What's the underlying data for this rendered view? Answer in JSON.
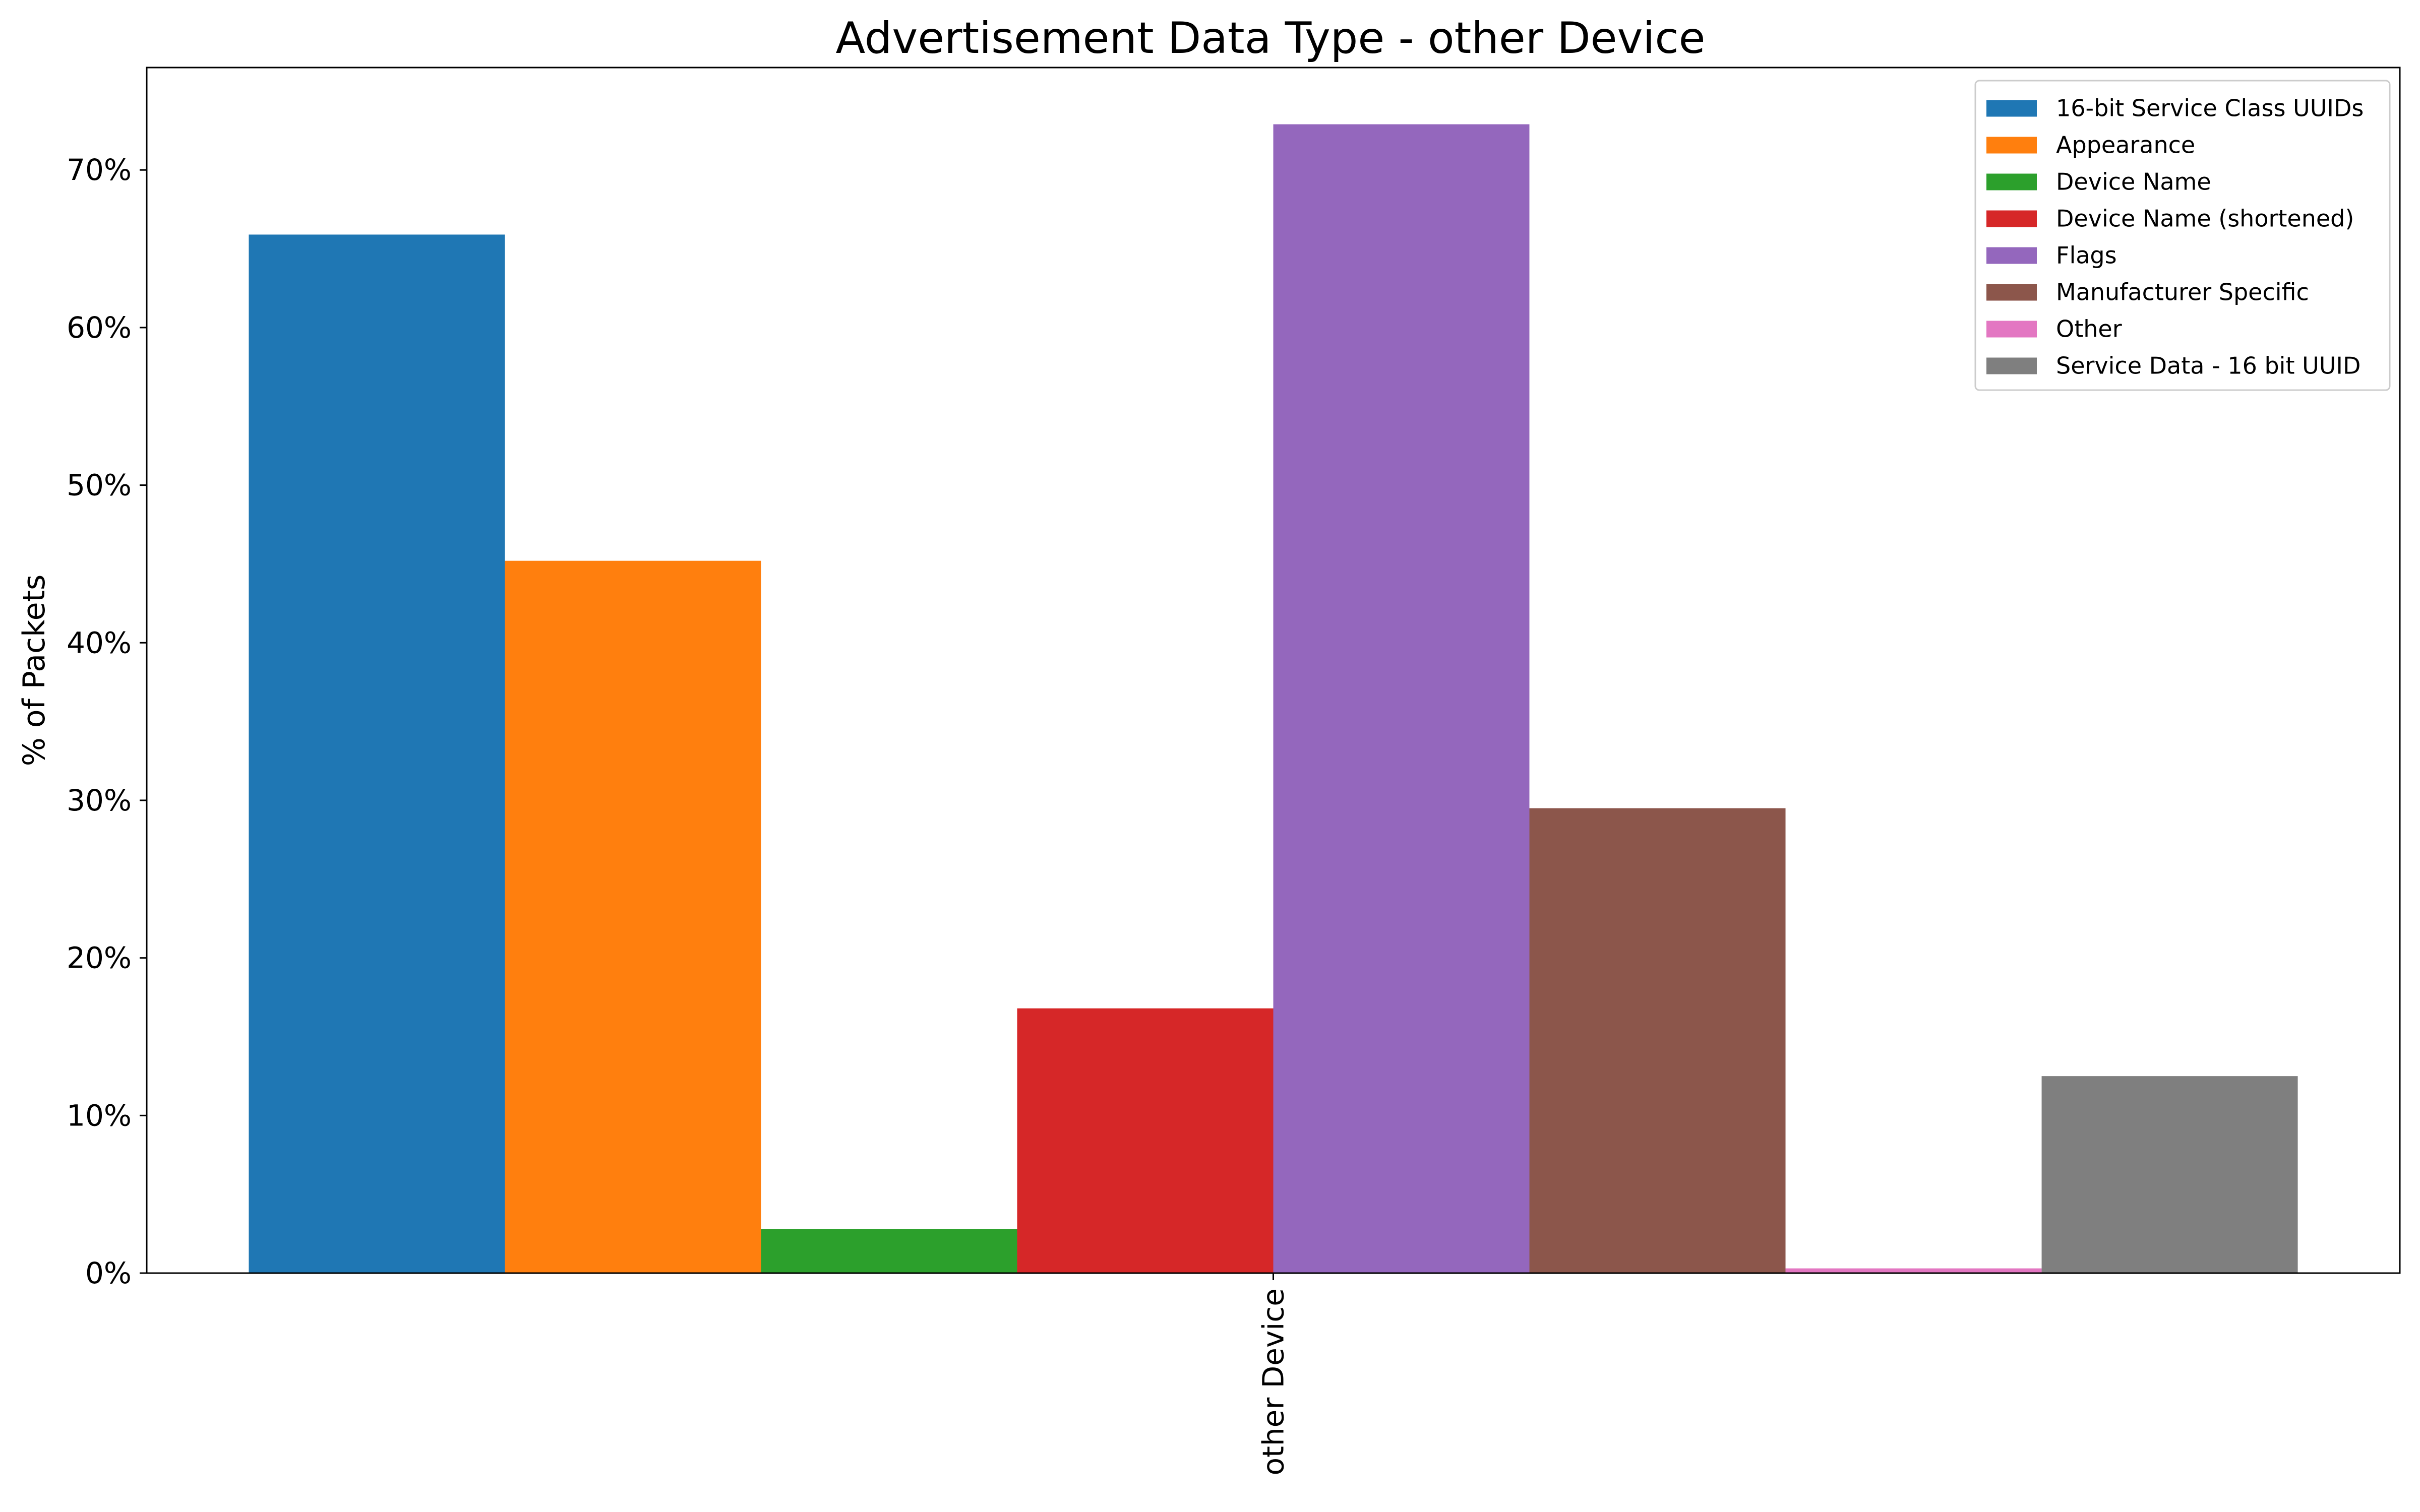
{
  "chart_data": {
    "type": "bar",
    "title": "Advertisement Data Type - other Device",
    "xlabel": "",
    "ylabel": "% of Packets",
    "categories": [
      "other Device"
    ],
    "y_unit": "%",
    "ylim": [
      0,
      76.5
    ],
    "yticks": [
      0,
      10,
      20,
      30,
      40,
      50,
      60,
      70
    ],
    "ytick_labels": [
      "0%",
      "10%",
      "20%",
      "30%",
      "40%",
      "50%",
      "60%",
      "70%"
    ],
    "grid": false,
    "legend_position": "top-right",
    "series": [
      {
        "name": "16-bit Service Class UUIDs",
        "color": "#1f77b4",
        "values": [
          65.9
        ]
      },
      {
        "name": "Appearance",
        "color": "#ff7f0e",
        "values": [
          45.2
        ]
      },
      {
        "name": "Device Name",
        "color": "#2ca02c",
        "values": [
          2.8
        ]
      },
      {
        "name": "Device Name (shortened)",
        "color": "#d62728",
        "values": [
          16.8
        ]
      },
      {
        "name": "Flags",
        "color": "#9467bd",
        "values": [
          72.9
        ]
      },
      {
        "name": "Manufacturer Specific",
        "color": "#8c564b",
        "values": [
          29.5
        ]
      },
      {
        "name": "Other",
        "color": "#e377c2",
        "values": [
          0.3
        ]
      },
      {
        "name": "Service Data - 16 bit UUID",
        "color": "#7f7f7f",
        "values": [
          12.5
        ]
      }
    ]
  }
}
